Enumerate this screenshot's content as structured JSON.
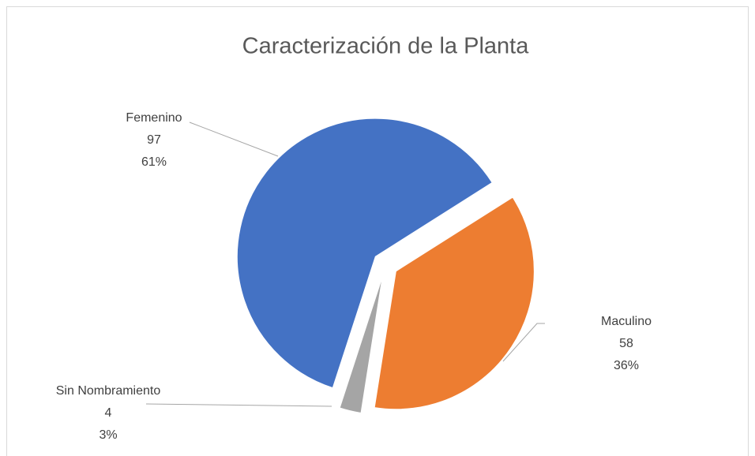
{
  "chart_data": {
    "type": "pie",
    "title": "Caracterización de la Planta",
    "categories": [
      "Femenino",
      "Maculino",
      "Sin Nombramiento"
    ],
    "values": [
      97,
      58,
      4
    ],
    "percent_labels": [
      "61%",
      "36%",
      "3%"
    ],
    "colors": [
      "#4472c4",
      "#ed7d31",
      "#a5a5a5"
    ]
  }
}
